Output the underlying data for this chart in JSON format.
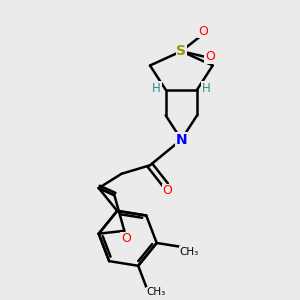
{
  "background_color": "#ebebeb",
  "atom_colors": {
    "S": "#999900",
    "O": "#ff0000",
    "N": "#0000ff",
    "H": "#2e8b8b",
    "C": "#000000"
  },
  "bond_color": "#000000",
  "bond_width": 1.8,
  "figsize": [
    3.0,
    3.0
  ],
  "dpi": 100,
  "xlim": [
    0,
    10
  ],
  "ylim": [
    0,
    10
  ]
}
